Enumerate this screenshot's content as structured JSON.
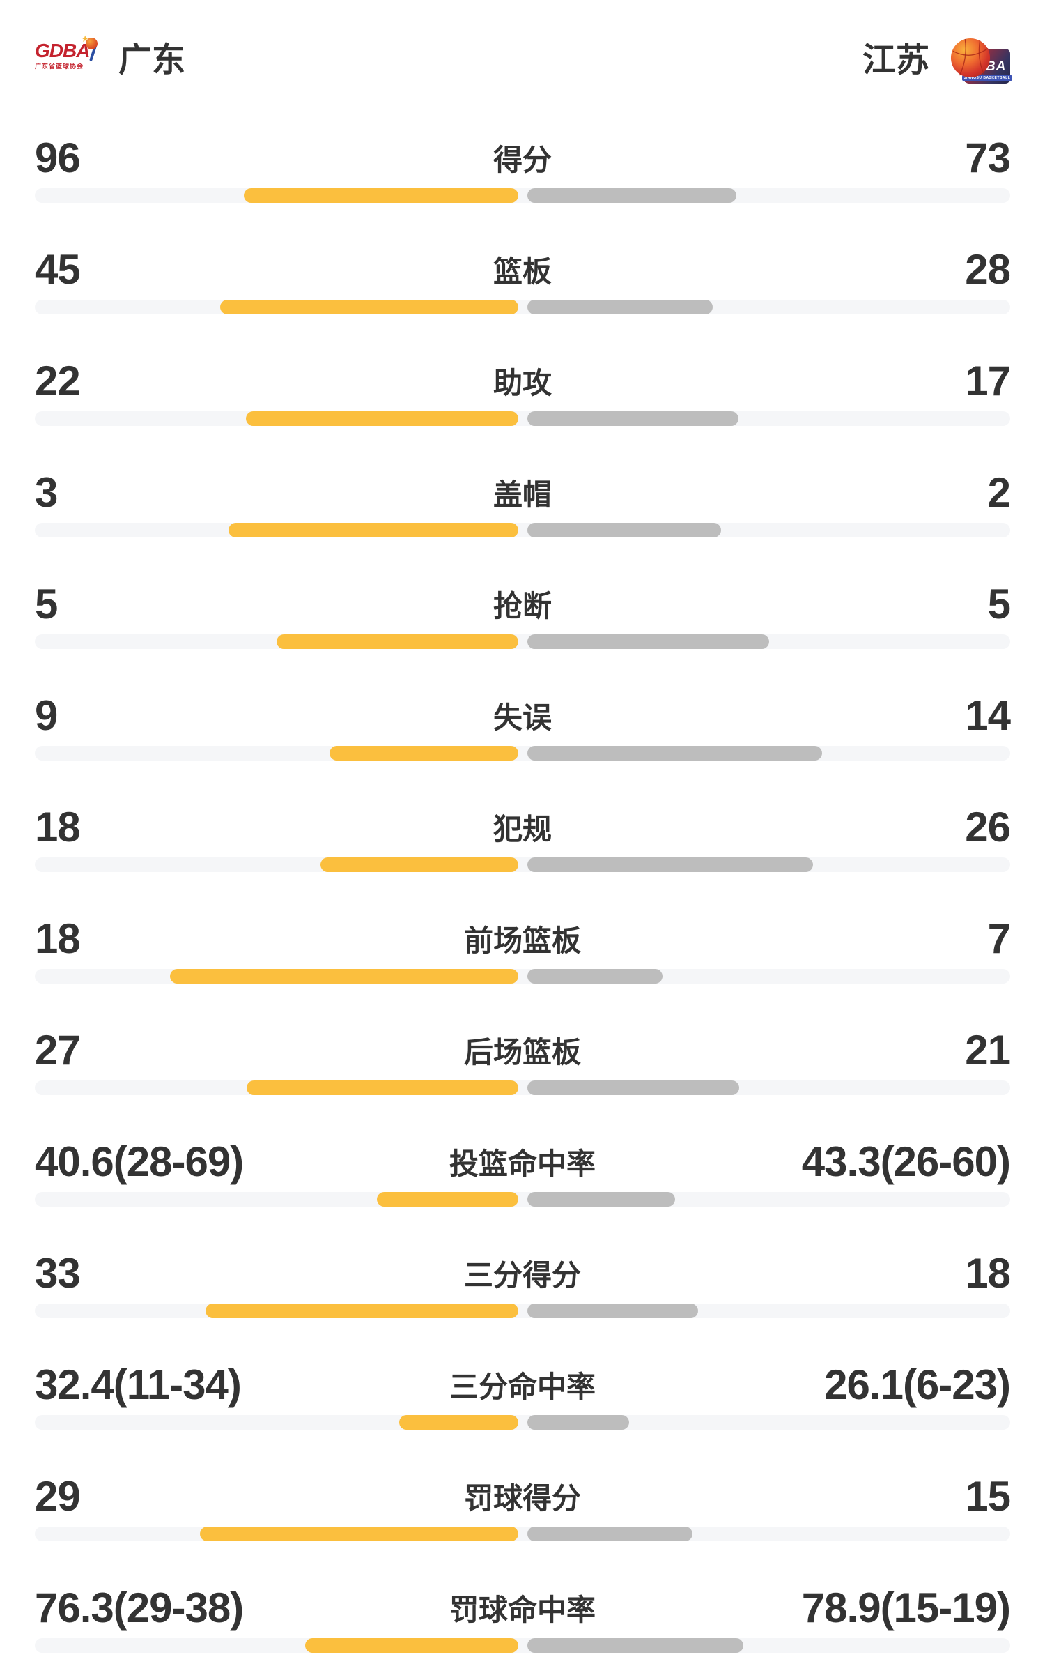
{
  "header": {
    "home": {
      "name": "广东",
      "logo": {
        "text": "GDBA",
        "subtext": "广东省篮球协会"
      }
    },
    "away": {
      "name": "江苏",
      "logo": {
        "text": "JSBA",
        "subtext": "JIANGSU BASKETBALL"
      }
    }
  },
  "colors": {
    "home_bar": "#fbbf3e",
    "away_bar": "#bdbdbd",
    "track": "#f5f6f8",
    "text": "#333333"
  },
  "chart_data": {
    "type": "bar",
    "teams": [
      "广东",
      "江苏"
    ],
    "legend_position": "header",
    "grid": false,
    "rows": [
      {
        "label": "得分",
        "left": "96",
        "right": "73",
        "left_value": 96,
        "right_value": 73,
        "lf": 0.568,
        "rf": 0.432
      },
      {
        "label": "篮板",
        "left": "45",
        "right": "28",
        "left_value": 45,
        "right_value": 28,
        "lf": 0.616,
        "rf": 0.384
      },
      {
        "label": "助攻",
        "left": "22",
        "right": "17",
        "left_value": 22,
        "right_value": 17,
        "lf": 0.564,
        "rf": 0.436
      },
      {
        "label": "盖帽",
        "left": "3",
        "right": "2",
        "left_value": 3,
        "right_value": 2,
        "lf": 0.6,
        "rf": 0.4
      },
      {
        "label": "抢断",
        "left": "5",
        "right": "5",
        "left_value": 5,
        "right_value": 5,
        "lf": 0.5,
        "rf": 0.5
      },
      {
        "label": "失误",
        "left": "9",
        "right": "14",
        "left_value": 9,
        "right_value": 14,
        "lf": 0.391,
        "rf": 0.609
      },
      {
        "label": "犯规",
        "left": "18",
        "right": "26",
        "left_value": 18,
        "right_value": 26,
        "lf": 0.409,
        "rf": 0.591
      },
      {
        "label": "前场篮板",
        "left": "18",
        "right": "7",
        "left_value": 18,
        "right_value": 7,
        "lf": 0.72,
        "rf": 0.28
      },
      {
        "label": "后场篮板",
        "left": "27",
        "right": "21",
        "left_value": 27,
        "right_value": 21,
        "lf": 0.562,
        "rf": 0.438
      },
      {
        "label": "投篮命中率",
        "left": "40.6(28-69)",
        "right": "43.3(26-60)",
        "left_value": 40.6,
        "right_value": 43.3,
        "lf": 0.292,
        "rf": 0.306
      },
      {
        "label": "三分得分",
        "left": "33",
        "right": "18",
        "left_value": 33,
        "right_value": 18,
        "lf": 0.647,
        "rf": 0.353
      },
      {
        "label": "三分命中率",
        "left": "32.4(11-34)",
        "right": "26.1(6-23)",
        "left_value": 32.4,
        "right_value": 26.1,
        "lf": 0.247,
        "rf": 0.21
      },
      {
        "label": "罚球得分",
        "left": "29",
        "right": "15",
        "left_value": 29,
        "right_value": 15,
        "lf": 0.659,
        "rf": 0.341
      },
      {
        "label": "罚球命中率",
        "left": "76.3(29-38)",
        "right": "78.9(15-19)",
        "left_value": 76.3,
        "right_value": 78.9,
        "lf": 0.441,
        "rf": 0.447
      }
    ]
  }
}
